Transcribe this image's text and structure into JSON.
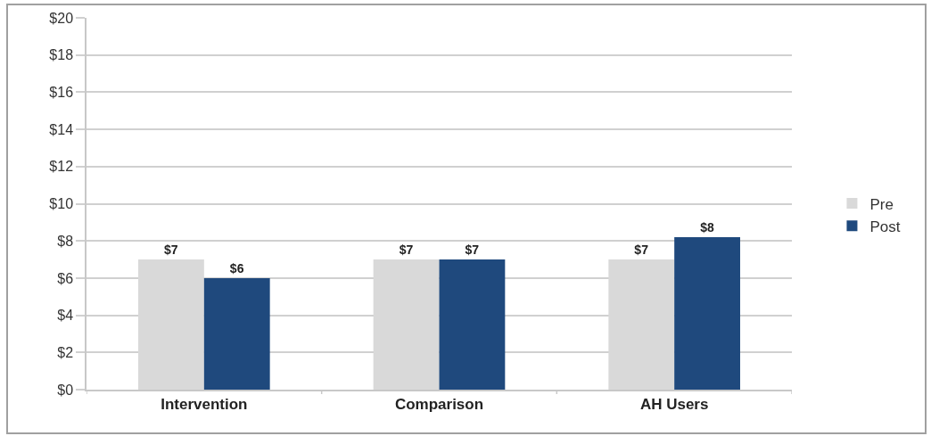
{
  "chart_data": {
    "type": "bar",
    "categories": [
      "Intervention",
      "Comparison",
      "AH Users"
    ],
    "series": [
      {
        "name": "Pre",
        "color": "#d9d9d9",
        "values": [
          7,
          7,
          7
        ],
        "value_labels": [
          "$7",
          "$7",
          "$7"
        ]
      },
      {
        "name": "Post",
        "color": "#1f497d",
        "values": [
          6,
          7,
          8.2
        ],
        "value_labels": [
          "$6",
          "$7",
          "$8"
        ]
      }
    ],
    "ylim": [
      0,
      20
    ],
    "yticks": [
      {
        "value": 0,
        "label": "$0"
      },
      {
        "value": 2,
        "label": "$2"
      },
      {
        "value": 4,
        "label": "$4"
      },
      {
        "value": 6,
        "label": "$6"
      },
      {
        "value": 8,
        "label": "$8"
      },
      {
        "value": 10,
        "label": "$10"
      },
      {
        "value": 12,
        "label": "$12"
      },
      {
        "value": 14,
        "label": "$14"
      },
      {
        "value": 16,
        "label": "$16"
      },
      {
        "value": 18,
        "label": "$18"
      },
      {
        "value": 20,
        "label": "$20"
      }
    ],
    "grid": "y",
    "legend": "right"
  }
}
